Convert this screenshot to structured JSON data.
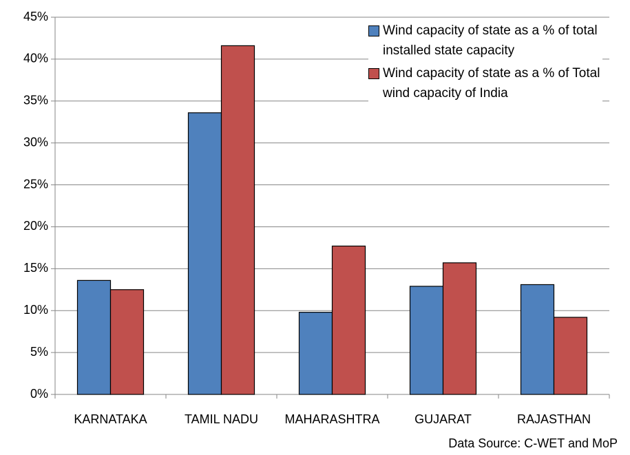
{
  "chart_data": {
    "type": "bar",
    "categories": [
      "KARNATAKA",
      "TAMIL NADU",
      "MAHARASHTRA",
      "GUJARAT",
      "RAJASTHAN"
    ],
    "series": [
      {
        "name": "Wind capacity of state as a % of total installed state capacity",
        "color": "#4f81bd",
        "values": [
          13.6,
          33.6,
          9.8,
          12.9,
          13.1
        ]
      },
      {
        "name": "Wind capacity of state as a % of Total wind capacity of India",
        "color": "#c0504d",
        "values": [
          12.5,
          41.6,
          17.7,
          15.7,
          9.2
        ]
      }
    ],
    "ylim": [
      0,
      45
    ],
    "yticks": [
      {
        "value": 0,
        "label": "0%"
      },
      {
        "value": 5,
        "label": "5%"
      },
      {
        "value": 10,
        "label": "10%"
      },
      {
        "value": 15,
        "label": "15%"
      },
      {
        "value": 20,
        "label": "20%"
      },
      {
        "value": 25,
        "label": "25%"
      },
      {
        "value": 30,
        "label": "30%"
      },
      {
        "value": 35,
        "label": "35%"
      },
      {
        "value": 40,
        "label": "40%"
      },
      {
        "value": 45,
        "label": "45%"
      }
    ],
    "grid": true,
    "legend": "top-right",
    "annotation": "Data Source: C-WET and MoP"
  }
}
